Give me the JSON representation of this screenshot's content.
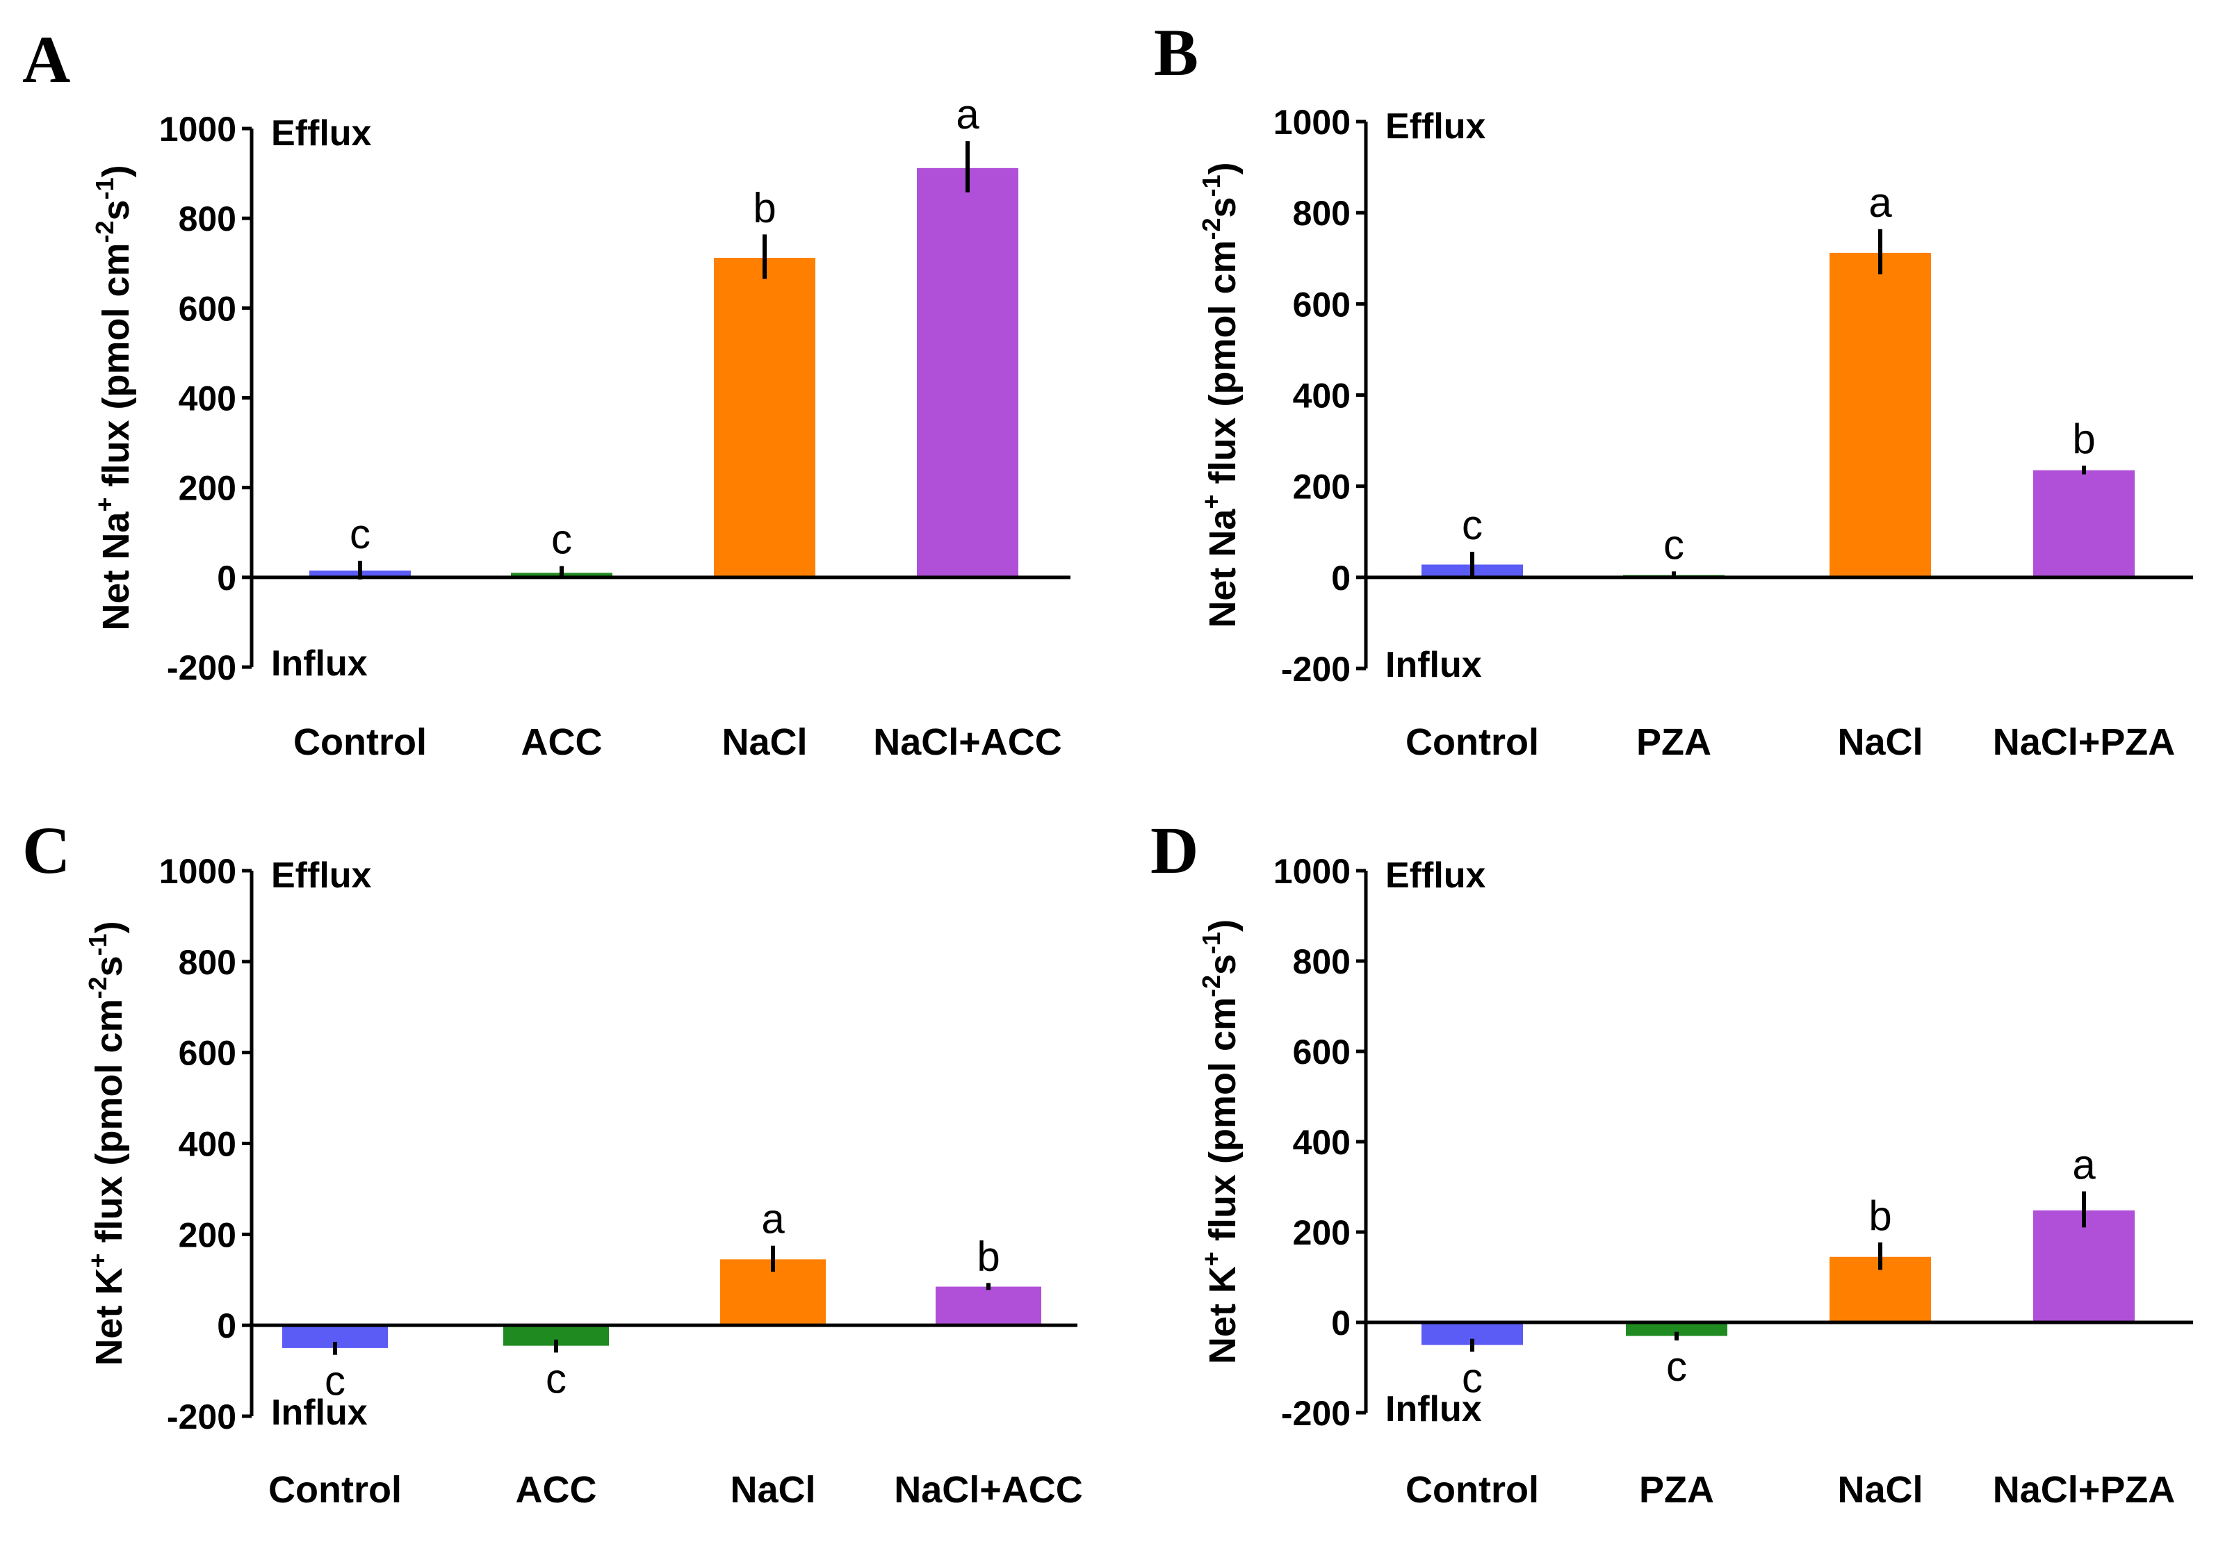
{
  "chart_data": [
    {
      "panel": "A",
      "type": "bar",
      "ylabel": {
        "pre": "Net Na",
        "sup1": "+",
        "mid": " flux (pmol cm",
        "sup2": "-2",
        "mid2": "s",
        "sup3": "-1",
        "post": ")"
      },
      "ylim": [
        -200,
        1000
      ],
      "yticks": [
        "1000",
        "800",
        "600",
        "400",
        "200",
        "0",
        "-200"
      ],
      "top_label": "Efflux",
      "bottom_label": "Influx",
      "categories": [
        "Control",
        "ACC",
        "NaCl",
        "NaCl+ACC"
      ],
      "values": [
        15,
        10,
        712,
        912
      ],
      "errors": [
        22,
        15,
        52,
        60
      ],
      "significance": [
        "c",
        "c",
        "b",
        "a"
      ],
      "colors": [
        "#5b5bf5",
        "#1f8a1f",
        "#ff8000",
        "#b050d8"
      ]
    },
    {
      "panel": "B",
      "type": "bar",
      "ylabel": {
        "pre": "Net Na",
        "sup1": "+",
        "mid": " flux (pmol cm",
        "sup2": "-2",
        "mid2": "s",
        "sup3": "-1",
        "post": ")"
      },
      "ylim": [
        -200,
        1000
      ],
      "yticks": [
        "1000",
        "800",
        "600",
        "400",
        "200",
        "0",
        "-200"
      ],
      "top_label": "Efflux",
      "bottom_label": "Influx",
      "categories": [
        "Control",
        "PZA",
        "NaCl",
        "NaCl+PZA"
      ],
      "values": [
        28,
        5,
        712,
        235
      ],
      "errors": [
        28,
        8,
        52,
        10
      ],
      "significance": [
        "c",
        "c",
        "a",
        "b"
      ],
      "colors": [
        "#5b5bf5",
        "#1f8a1f",
        "#ff8000",
        "#b050d8"
      ]
    },
    {
      "panel": "C",
      "type": "bar",
      "ylabel": {
        "pre": "Net K",
        "sup1": "+",
        "mid": " flux (pmol cm",
        "sup2": "-2",
        "mid2": "s",
        "sup3": "-1",
        "post": ")"
      },
      "ylim": [
        -200,
        1000
      ],
      "yticks": [
        "1000",
        "800",
        "600",
        "400",
        "200",
        "0",
        "-200"
      ],
      "top_label": "Efflux",
      "bottom_label": "Influx",
      "categories": [
        "Control",
        "ACC",
        "NaCl",
        "NaCl+ACC"
      ],
      "values": [
        -50,
        -45,
        145,
        85
      ],
      "errors": [
        15,
        15,
        30,
        8
      ],
      "significance": [
        "c",
        "c",
        "a",
        "b"
      ],
      "colors": [
        "#5b5bf5",
        "#1f8a1f",
        "#ff8000",
        "#b050d8"
      ]
    },
    {
      "panel": "D",
      "type": "bar",
      "ylabel": {
        "pre": "Net K",
        "sup1": "+",
        "mid": " flux (pmol cm",
        "sup2": "-2",
        "mid2": "s",
        "sup3": "-1",
        "post": ")"
      },
      "ylim": [
        -200,
        1000
      ],
      "yticks": [
        "1000",
        "800",
        "600",
        "400",
        "200",
        "0",
        "-200"
      ],
      "top_label": "Efflux",
      "bottom_label": "Influx",
      "categories": [
        "Control",
        "PZA",
        "NaCl",
        "NaCl+PZA"
      ],
      "values": [
        -50,
        -30,
        145,
        248
      ],
      "errors": [
        15,
        10,
        32,
        42
      ],
      "significance": [
        "c",
        "c",
        "b",
        "a"
      ],
      "colors": [
        "#5b5bf5",
        "#1f8a1f",
        "#ff8000",
        "#b050d8"
      ]
    }
  ]
}
